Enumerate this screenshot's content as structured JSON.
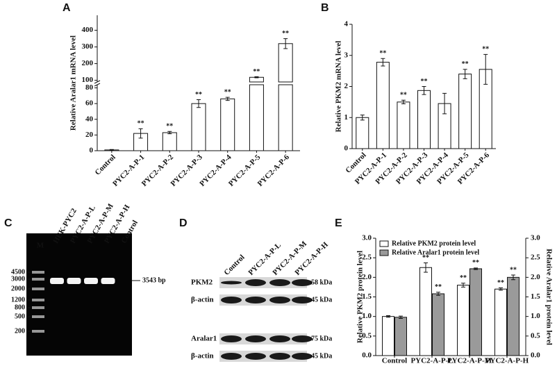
{
  "chart_data": [
    {
      "type": "bar",
      "panel_label": "A",
      "ylabel": "Relative Aralar1 mRNA level",
      "categories": [
        "Control",
        "PYC2-A-P-1",
        "PYC2-A-P-2",
        "PYC2-A-P-3",
        "PYC2-A-P-4",
        "PYC2-A-P-5",
        "PYC2-A-P-6"
      ],
      "values": [
        1,
        22,
        23,
        60,
        66,
        118,
        320
      ],
      "errors": [
        0.5,
        6,
        1.5,
        5,
        2,
        3,
        30
      ],
      "significance": [
        null,
        "**",
        "**",
        "**",
        "**",
        "**",
        "**"
      ],
      "color": "#ffffff",
      "ylim": [
        0,
        84
      ],
      "yticks": [
        0,
        20,
        40,
        60,
        80
      ],
      "axis_break": {
        "ylim": [
          90,
          490
        ],
        "yticks": [
          100,
          200,
          300,
          400
        ]
      }
    },
    {
      "type": "bar",
      "panel_label": "B",
      "ylabel": "Relative PKM2 mRNA level",
      "categories": [
        "Control",
        "PYC2-A-P-1",
        "PYC2-A-P-2",
        "PYC2-A-P-3",
        "PYC2-A-P-4",
        "PYC2-A-P-5",
        "PYC2-A-P-6"
      ],
      "values": [
        1.0,
        2.78,
        1.5,
        1.87,
        1.45,
        2.4,
        2.55
      ],
      "errors": [
        0.08,
        0.12,
        0.06,
        0.13,
        0.33,
        0.15,
        0.48
      ],
      "significance": [
        null,
        "**",
        "**",
        "**",
        null,
        "**",
        "**"
      ],
      "color": "#ffffff",
      "ylim": [
        0,
        4
      ],
      "yticks": [
        0,
        1,
        2,
        3,
        4
      ]
    },
    {
      "type": "bar",
      "panel_label": "E",
      "ylabel": "Relative PKM2 protein level",
      "y2label": "Relative Aralar1 protein level",
      "categories": [
        "Control",
        "PYC2-A-P-L",
        "PYC2-A-P-M",
        "PYC2-A-P-H"
      ],
      "series": [
        {
          "name": "Relative PKM2 protein level",
          "color": "#ffffff",
          "values": [
            1.0,
            2.25,
            1.8,
            1.7
          ],
          "errors": [
            0.02,
            0.12,
            0.05,
            0.03
          ],
          "significance": [
            null,
            "**",
            "**",
            "**"
          ]
        },
        {
          "name": "Relative Aralar1 protein level",
          "color": "#9a9a9a",
          "axis": "y2",
          "values": [
            0.98,
            1.58,
            2.22,
            2.0
          ],
          "errors": [
            0.03,
            0.04,
            0.02,
            0.06
          ],
          "significance": [
            null,
            "**",
            "**",
            "**"
          ]
        }
      ],
      "legend": "upper left",
      "ylim": [
        0,
        3
      ],
      "yticks": [
        {
          "value": 0,
          "label": "0.0"
        },
        0.5,
        {
          "value": 1,
          "label": "1.0"
        },
        1.5,
        {
          "value": 2,
          "label": "2.0"
        },
        2.5,
        {
          "value": 3,
          "label": "3.0"
        }
      ],
      "y2lim": [
        0,
        3
      ],
      "y2ticks": [
        {
          "value": 0,
          "label": "0.0"
        },
        0.5,
        {
          "value": 1,
          "label": "1.0"
        },
        1.5,
        {
          "value": 2,
          "label": "2.0"
        },
        2.5,
        {
          "value": 3,
          "label": "3.0"
        }
      ]
    }
  ],
  "gel": {
    "panel_label": "C",
    "marker": "M",
    "lanes": [
      "HEK-PYC2",
      "PYC2-A-P-L",
      "PYC2-A-P-M",
      "PYC2-A-P-H",
      "Control"
    ],
    "ladder": [
      4500,
      3000,
      2000,
      1200,
      800,
      500,
      200
    ],
    "band_label": "3543 bp"
  },
  "blot": {
    "panel_label": "D",
    "lanes": [
      "Control",
      "PYC2-A-P-L",
      "PYC2-A-P-M",
      "PYC2-A-P-H"
    ],
    "rows": [
      {
        "protein": "PKM2",
        "size": "58 kDa"
      },
      {
        "protein": "β-actin",
        "size": "45 kDa"
      },
      {
        "protein": "Aralar1",
        "size": "75 kDa"
      },
      {
        "protein": "β-actin",
        "size": "45 kDa"
      }
    ]
  }
}
